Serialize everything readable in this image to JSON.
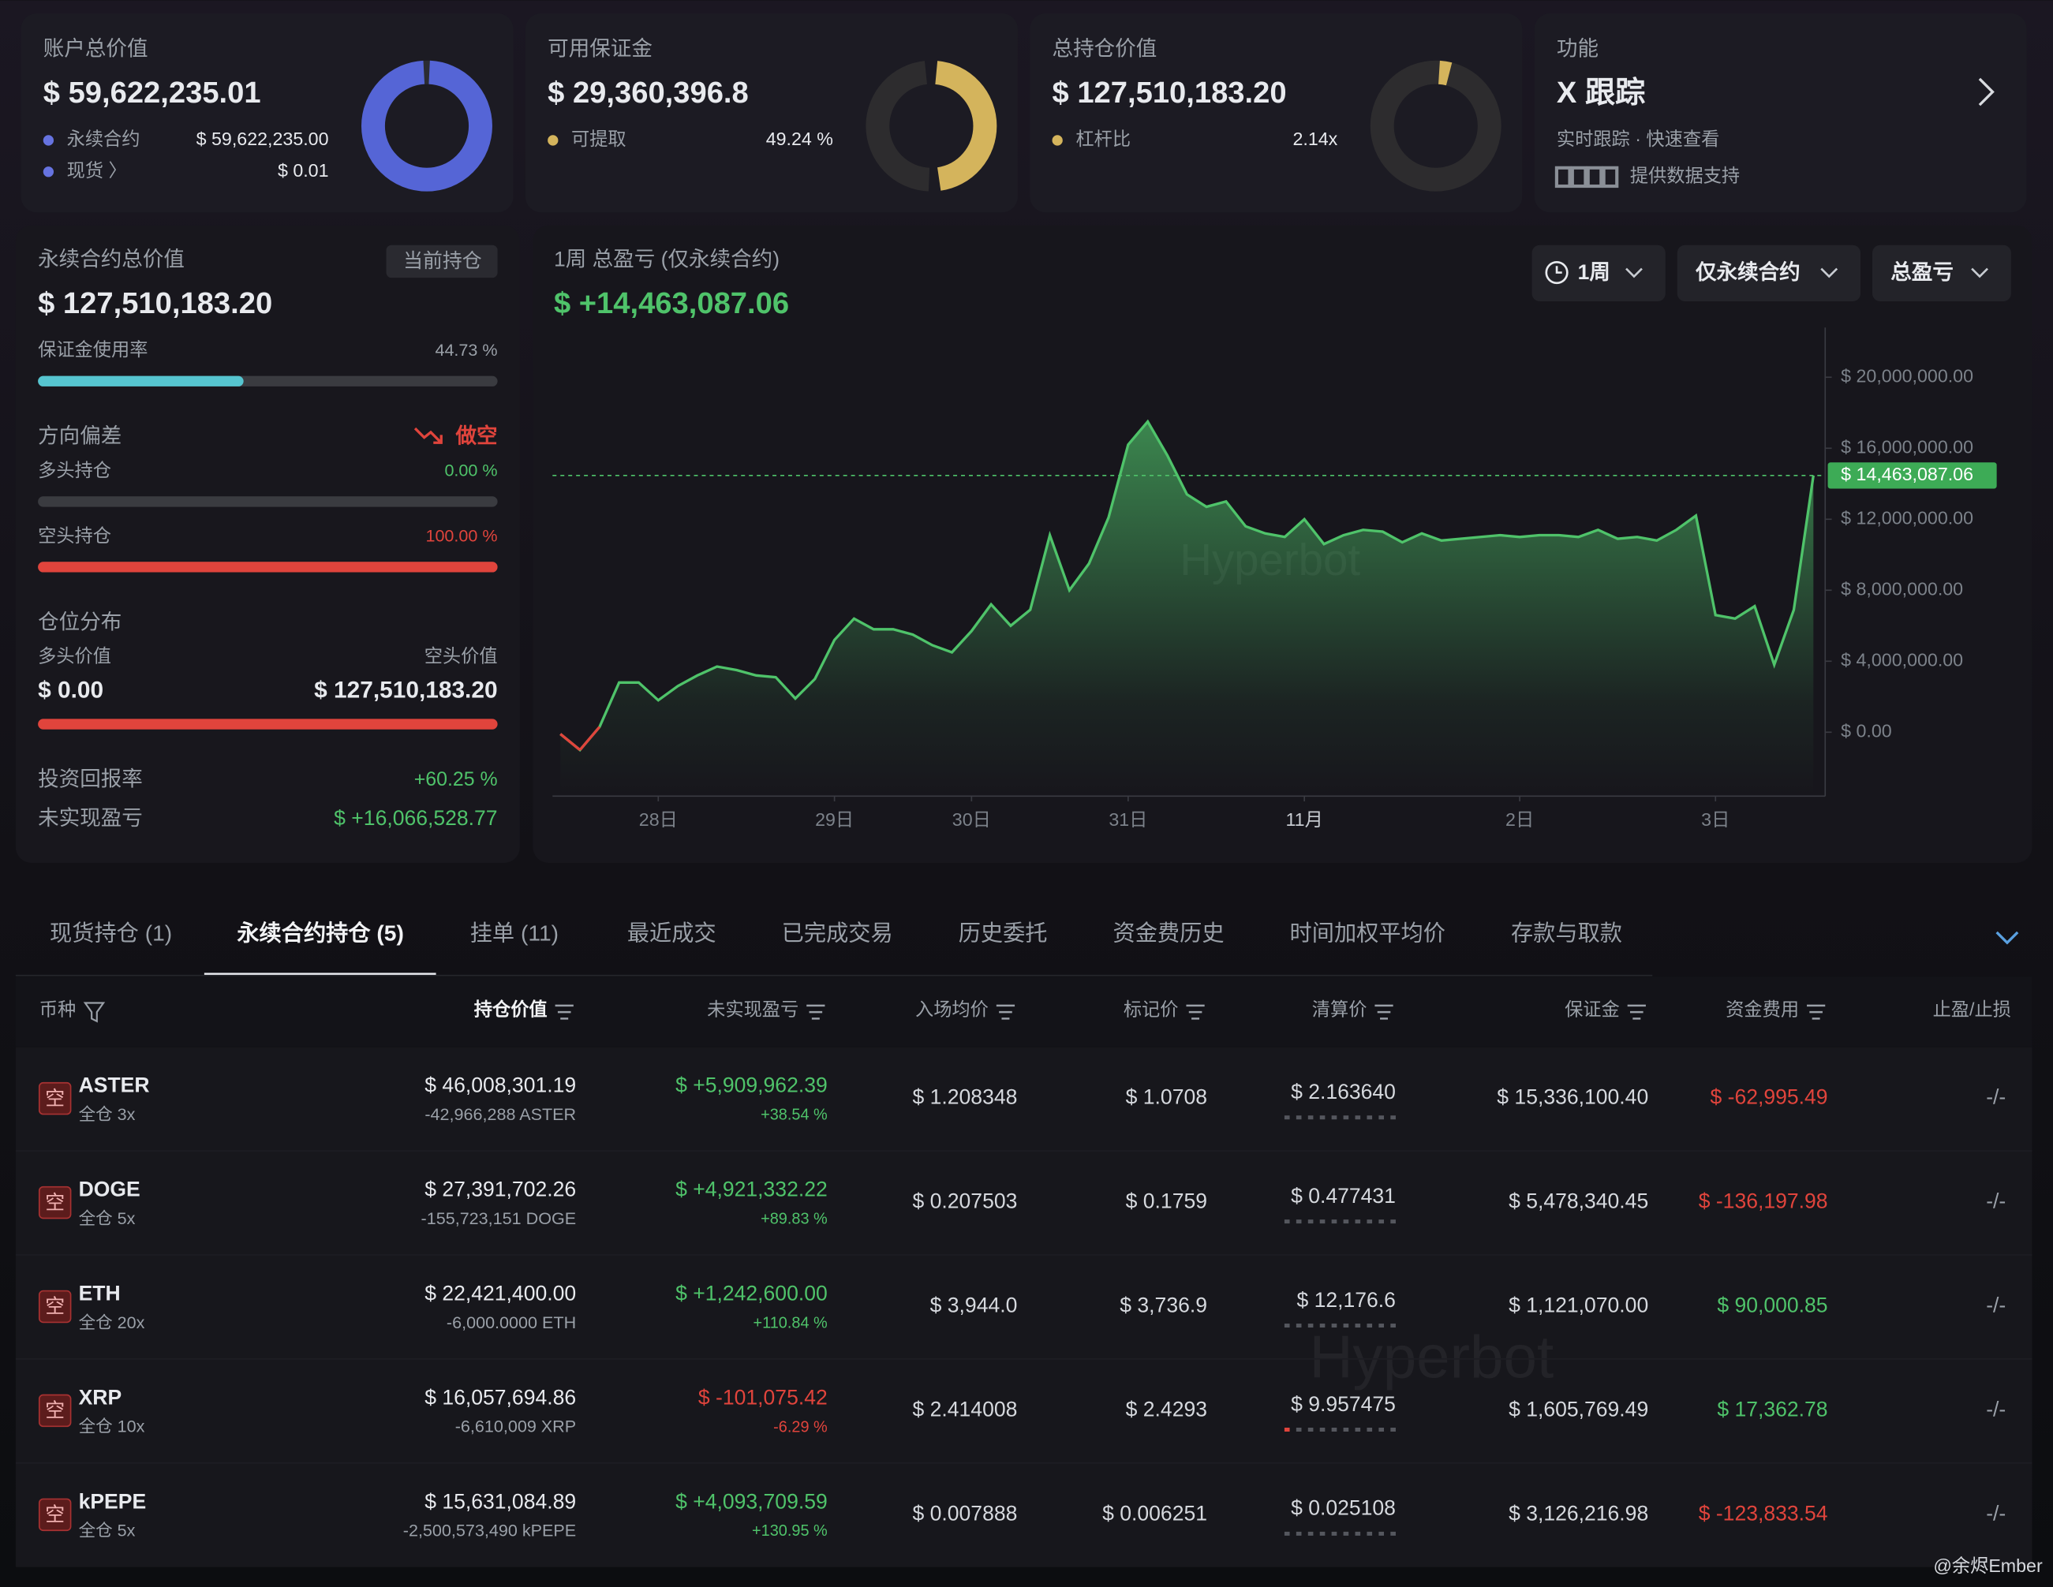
{
  "cards": [
    {
      "title": "账户总价值",
      "value": "$ 59,622,235.01",
      "items": [
        {
          "label": "永续合约",
          "value": "$ 59,622,235.00"
        },
        {
          "label": "现货 〉",
          "value": "$ 0.01"
        }
      ],
      "ring_values": [
        59622235.0,
        0.01
      ]
    },
    {
      "title": "可用保证金",
      "value": "$ 29,360,396.8",
      "items": [
        {
          "label": "可提取",
          "value": "49.24 %"
        }
      ],
      "ring_percent": 49.24
    },
    {
      "title": "总持仓价值",
      "value": "$ 127,510,183.20",
      "items": [
        {
          "label": "杠杆比",
          "value": "2.14x"
        }
      ]
    },
    {
      "title": "功能",
      "value": "X 跟踪",
      "subtitle": "实时跟踪 · 快速查看",
      "note": "提供数据支持"
    }
  ],
  "summary": {
    "title": "永续合约总价值",
    "badge": "当前持仓",
    "value": "$ 127,510,183.20",
    "margin_usage": {
      "label": "保证金使用率",
      "value": 44.73,
      "value_label": "44.73 %"
    },
    "bias_title": "方向偏差",
    "bias": "做空",
    "long": {
      "label": "多头持仓",
      "value": 0.0,
      "value_label": "0.00 %"
    },
    "short": {
      "label": "空头持仓",
      "value": 100.0,
      "value_label": "100.00 %"
    },
    "distribution": {
      "title": "仓位分布",
      "long_label": "多头价值",
      "short_label": "空头价值",
      "long_value": 0.0,
      "long_value_label": "$ 0.00",
      "short_value": 127510183.2,
      "short_value_label": "$ 127,510,183.20"
    },
    "roi": {
      "label": "投资回报率",
      "value": "+60.25 %"
    },
    "upnl": {
      "label": "未实现盈亏",
      "value": "$ +16,066,528.77"
    }
  },
  "pnl_chart": {
    "type": "area",
    "title": "1周 总盈亏 (仅永续合约)",
    "total": "$ +14,463,087.06",
    "controls": [
      "1周",
      "仅永续合约",
      "总盈亏"
    ],
    "watermark": "Hyperbot",
    "values": [
      -100000,
      -1000000,
      300000,
      2800000,
      2800000,
      1800000,
      2600000,
      3200000,
      3700000,
      3500000,
      3200000,
      3100000,
      1900000,
      3000000,
      5200000,
      6400000,
      5800000,
      5800000,
      5500000,
      4900000,
      4500000,
      5700000,
      7200000,
      6000000,
      6900000,
      11100000,
      8000000,
      9500000,
      12100000,
      16200000,
      17500000,
      15600000,
      13400000,
      12700000,
      13000000,
      11600000,
      11200000,
      11000000,
      12000000,
      10600000,
      11100000,
      11400000,
      11300000,
      10700000,
      11200000,
      10800000,
      10900000,
      11000000,
      11100000,
      11000000,
      11100000,
      11100000,
      11000000,
      11400000,
      10900000,
      11000000,
      10800000,
      11400000,
      12200000,
      6600000,
      6400000,
      7100000,
      3800000,
      6900000,
      14463087.06
    ],
    "xlim": [
      0,
      64
    ],
    "xticks": [
      {
        "value": 5,
        "label": "28日"
      },
      {
        "value": 14,
        "label": "29日"
      },
      {
        "value": 21,
        "label": "30日"
      },
      {
        "value": 29,
        "label": "31日"
      },
      {
        "value": 38,
        "label": "11月"
      },
      {
        "value": 49,
        "label": "2日"
      },
      {
        "value": 59,
        "label": "3日"
      }
    ],
    "ylim": [
      -3600000,
      22800000
    ],
    "yticks": [
      {
        "value": 0,
        "label": "$ 0.00"
      },
      {
        "value": 4000000,
        "label": "$ 4,000,000.00"
      },
      {
        "value": 8000000,
        "label": "$ 8,000,000.00"
      },
      {
        "value": 12000000,
        "label": "$ 12,000,000.00"
      },
      {
        "value": 16000000,
        "label": "$ 16,000,000.00"
      },
      {
        "value": 20000000,
        "label": "$ 20,000,000.00"
      }
    ],
    "current": {
      "value": 14463087.06,
      "label": "$ 14,463,087.06"
    },
    "color": "#4fc36a",
    "negative_color": "#e0443c"
  },
  "tabs": [
    "现货持仓 (1)",
    "永续合约持仓 (5)",
    "挂单 (11)",
    "最近成交",
    "已完成交易",
    "历史委托",
    "资金费历史",
    "时间加权平均价",
    "存款与取款"
  ],
  "active_tab": 1,
  "table": {
    "columns": [
      "币种",
      "持仓价值",
      "未实现盈亏",
      "入场均价",
      "标记价",
      "清算价",
      "保证金",
      "资金费用",
      "止盈/止损"
    ],
    "rows": [
      {
        "side": "空",
        "coin": "ASTER",
        "mode": "全仓 3x",
        "value": "$ 46,008,301.19",
        "size": "-42,966,288 ASTER",
        "pnl": "$ +5,909,962.39",
        "pnl_pct": "+38.54 %",
        "entry": "$ 1.208348",
        "mark": "$ 1.0708",
        "liq": "$ 2.163640",
        "margin": "$ 15,336,100.40",
        "funding": "$ -62,995.49",
        "tpsl": "-/-"
      },
      {
        "side": "空",
        "coin": "DOGE",
        "mode": "全仓 5x",
        "value": "$ 27,391,702.26",
        "size": "-155,723,151 DOGE",
        "pnl": "$ +4,921,332.22",
        "pnl_pct": "+89.83 %",
        "entry": "$ 0.207503",
        "mark": "$ 0.1759",
        "liq": "$ 0.477431",
        "margin": "$ 5,478,340.45",
        "funding": "$ -136,197.98",
        "tpsl": "-/-"
      },
      {
        "side": "空",
        "coin": "ETH",
        "mode": "全仓 20x",
        "value": "$ 22,421,400.00",
        "size": "-6,000.0000 ETH",
        "pnl": "$ +1,242,600.00",
        "pnl_pct": "+110.84 %",
        "entry": "$ 3,944.0",
        "mark": "$ 3,736.9",
        "liq": "$ 12,176.6",
        "margin": "$ 1,121,070.00",
        "funding": "$ 90,000.85",
        "tpsl": "-/-"
      },
      {
        "side": "空",
        "coin": "XRP",
        "mode": "全仓 10x",
        "value": "$ 16,057,694.86",
        "size": "-6,610,009 XRP",
        "pnl": "$ -101,075.42",
        "pnl_pct": "-6.29 %",
        "entry": "$ 2.414008",
        "mark": "$ 2.4293",
        "liq": "$ 9.957475",
        "margin": "$ 1,605,769.49",
        "funding": "$ 17,362.78",
        "tpsl": "-/-"
      },
      {
        "side": "空",
        "coin": "kPEPE",
        "mode": "全仓 5x",
        "value": "$ 15,631,084.89",
        "size": "-2,500,573,490 kPEPE",
        "pnl": "$ +4,093,709.59",
        "pnl_pct": "+130.95 %",
        "entry": "$ 0.007888",
        "mark": "$ 0.006251",
        "liq": "$ 0.025108",
        "margin": "$ 3,126,216.98",
        "funding": "$ -123,833.54",
        "tpsl": "-/-"
      }
    ]
  },
  "footer": "@余烬Ember"
}
